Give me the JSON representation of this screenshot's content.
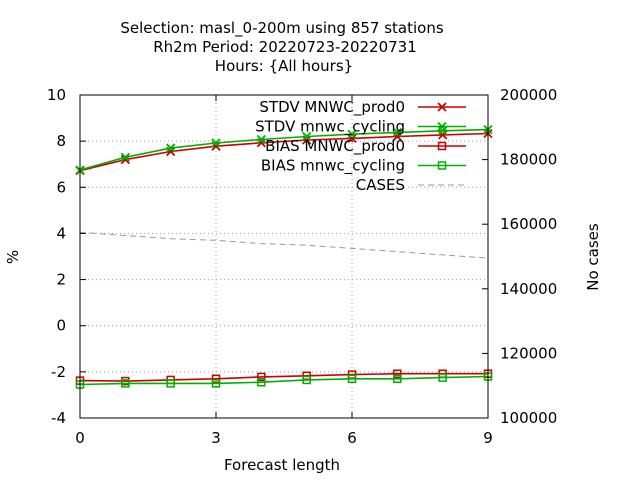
{
  "chart_data": {
    "type": "line",
    "title_lines": [
      "Selection: masl_0-200m using   857 stations",
      "Rh2m   Period: 20220723-20220731",
      "Hours: {All hours}"
    ],
    "xlabel": "Forecast length",
    "ylabel": "%",
    "y2label": "No cases",
    "xlim": [
      0,
      9
    ],
    "ylim": [
      -4,
      10
    ],
    "y2lim": [
      100000,
      200000
    ],
    "xticks": [
      0,
      3,
      6,
      9
    ],
    "yticks": [
      -4,
      -2,
      0,
      2,
      4,
      6,
      8,
      10
    ],
    "y2ticks": [
      100000,
      120000,
      140000,
      160000,
      180000,
      200000
    ],
    "grid": true,
    "legend_position": "top-right",
    "x": [
      0,
      1,
      2,
      3,
      4,
      5,
      6,
      7,
      8,
      9
    ],
    "series": [
      {
        "name": "STDV MNWC_prod0",
        "color": "#cc0000",
        "marker": "x",
        "axis": "y1",
        "values": [
          6.72,
          7.2,
          7.55,
          7.78,
          7.93,
          8.05,
          8.12,
          8.2,
          8.27,
          8.33
        ]
      },
      {
        "name": "STDV mnwc_cycling",
        "color": "#00b000",
        "marker": "x",
        "axis": "y1",
        "values": [
          6.75,
          7.3,
          7.7,
          7.92,
          8.07,
          8.2,
          8.3,
          8.38,
          8.45,
          8.5
        ]
      },
      {
        "name": "BIAS MNWC_prod0",
        "color": "#cc0000",
        "marker": "square",
        "axis": "y1",
        "values": [
          -2.38,
          -2.4,
          -2.35,
          -2.3,
          -2.22,
          -2.17,
          -2.12,
          -2.08,
          -2.08,
          -2.08
        ]
      },
      {
        "name": "BIAS mnwc_cycling",
        "color": "#00b000",
        "marker": "square",
        "axis": "y1",
        "values": [
          -2.55,
          -2.5,
          -2.5,
          -2.5,
          -2.45,
          -2.35,
          -2.3,
          -2.3,
          -2.25,
          -2.2
        ]
      },
      {
        "name": "CASES",
        "color": "#999999",
        "marker": "none",
        "dashed": true,
        "axis": "y2",
        "values": [
          157500,
          156500,
          155500,
          155000,
          154000,
          153500,
          152500,
          151500,
          150500,
          149500
        ]
      }
    ]
  }
}
